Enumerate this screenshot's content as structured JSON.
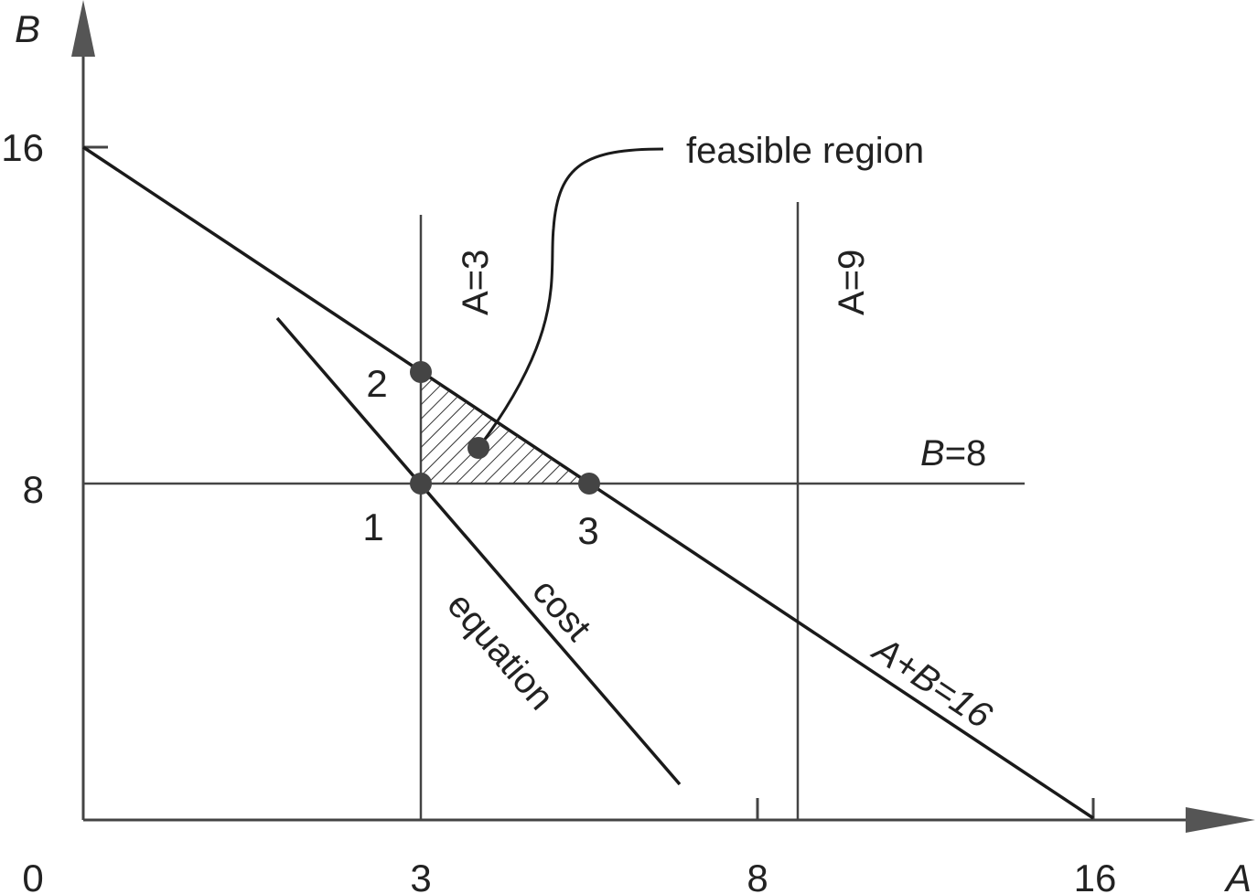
{
  "axes": {
    "x_label": "A",
    "y_label": "B",
    "x_ticks": [
      "0",
      "3",
      "8",
      "16"
    ],
    "y_ticks": [
      "16",
      "8"
    ]
  },
  "lines": {
    "a3": "A=3",
    "a9": "A=9",
    "b8": {
      "var": "B",
      "rest": "=8"
    },
    "sum": "A+B=16",
    "cost_line1": "cost",
    "cost_line2": "equation"
  },
  "callout": "feasible region",
  "points": [
    "1",
    "2",
    "3"
  ],
  "colors": {
    "axis": "#444444",
    "line": "#1a1a1a",
    "text": "#222222"
  }
}
